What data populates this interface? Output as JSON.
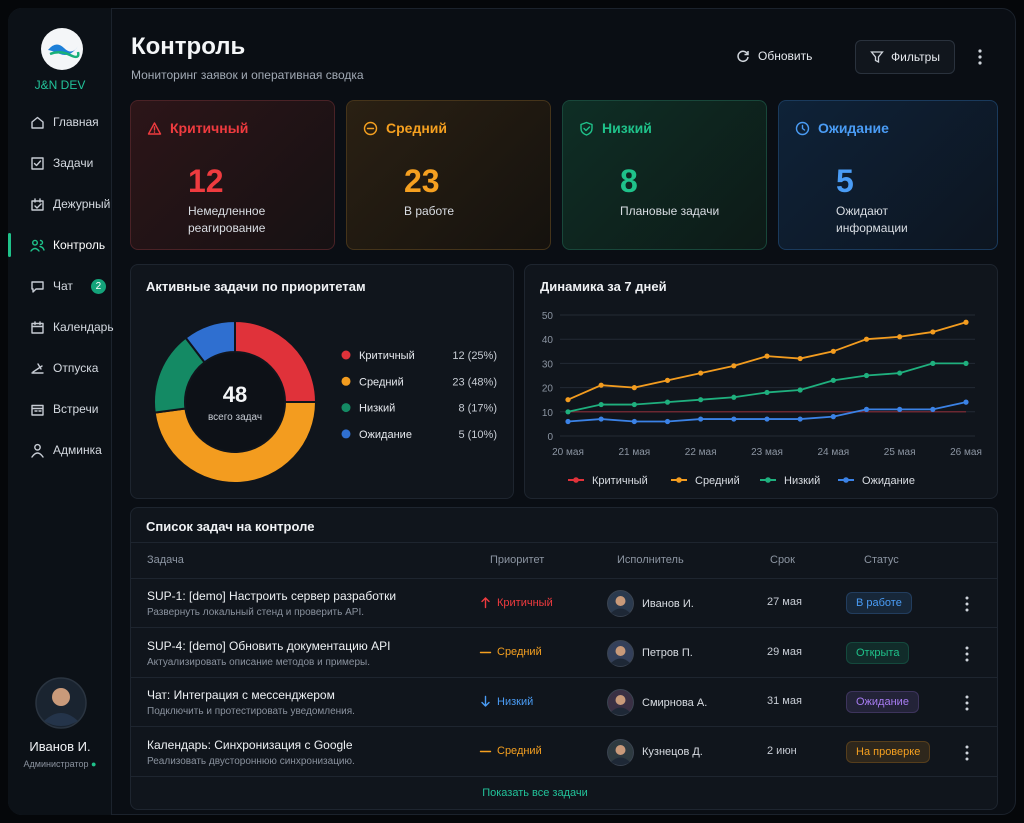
{
  "sidebar": {
    "logo_text": "J&N DEV",
    "nav": [
      {
        "label": "Главная"
      },
      {
        "label": "Задачи"
      },
      {
        "label": "Дежурный"
      },
      {
        "label": "Контроль",
        "active": true
      },
      {
        "label": "Чат",
        "badge": 2
      },
      {
        "label": "Календарь"
      },
      {
        "label": "Отпуска"
      },
      {
        "label": "Встречи"
      },
      {
        "label": "Админка"
      }
    ],
    "user": {
      "name": "Иванов И.",
      "role": "Администратор"
    }
  },
  "header": {
    "title": "Контроль",
    "subtitle": "Мониторинг заявок и оперативная сводка",
    "actions": [
      "Обновить",
      "Фильтры"
    ]
  },
  "cards": [
    {
      "title": "Критичный",
      "value": 12,
      "desc": "Немедленное реагирование",
      "color": "#ef3b3f"
    },
    {
      "title": "Средний",
      "value": 23,
      "desc": "В работе",
      "color": "#f5a020"
    },
    {
      "title": "Низкий",
      "value": 8,
      "desc": "Плановые задачи",
      "color": "#1fc28a"
    },
    {
      "title": "Ожидание",
      "value": 5,
      "desc": "Ожидают информации",
      "color": "#4a9cf5"
    }
  ],
  "chart_data": [
    {
      "type": "pie",
      "title": "Активные задачи по приоритетам",
      "center_value": 48,
      "center_label": "всего задач",
      "categories": [
        "Критичный",
        "Средний",
        "Низкий",
        "Ожидание"
      ],
      "values": [
        12,
        23,
        8,
        5
      ],
      "value_labels": [
        "12 (25%)",
        "23 (48%)",
        "8 (17%)",
        "5 (10%)"
      ],
      "colors": [
        "#e0323a",
        "#f39c1f",
        "#148a64",
        "#2f6fd0"
      ]
    },
    {
      "type": "line",
      "title": "Динамика за 7 дней",
      "categories": [
        "20 мая",
        null,
        "21 мая",
        null,
        "22 мая",
        null,
        "23 мая",
        null,
        "24 мая",
        null,
        "25 мая",
        null,
        "26 мая"
      ],
      "ylim": [
        0,
        50
      ],
      "yticks": [
        0,
        10,
        20,
        30,
        40,
        50
      ],
      "grid": true,
      "legend": "bottom",
      "series": [
        {
          "name": "Критичный",
          "color": "#e0323a",
          "values": [
            10,
            10,
            10,
            10,
            10,
            10,
            10,
            10,
            10,
            10,
            10,
            10,
            10
          ]
        },
        {
          "name": "Средний",
          "color": "#f39c1f",
          "values": [
            15,
            21,
            20,
            23,
            26,
            29,
            33,
            32,
            35,
            40,
            41,
            43,
            47
          ]
        },
        {
          "name": "Низкий",
          "color": "#1fb07e",
          "values": [
            10,
            13,
            13,
            14,
            15,
            16,
            18,
            19,
            23,
            25,
            26,
            30,
            30
          ]
        },
        {
          "name": "Ожидание",
          "color": "#3b82e6",
          "values": [
            6,
            7,
            6,
            6,
            7,
            7,
            7,
            7,
            8,
            11,
            11,
            11,
            14
          ]
        }
      ]
    }
  ],
  "table": {
    "title": "Список задач на контроле",
    "columns": [
      "Задача",
      "Приоритет",
      "Исполнитель",
      "Срок",
      "Статус"
    ],
    "rows": [
      {
        "task": "SUP-1: [demo] Настроить сервер разработки",
        "desc": "Развернуть локальный стенд и проверить API.",
        "priority": "Критичный",
        "priority_color": "#ef3b3f",
        "priority_icon": "up",
        "assignee": "Иванов И.",
        "due": "27 мая",
        "status": "В работе",
        "status_color": "#4a9cf5"
      },
      {
        "task": "SUP-4: [demo] Обновить документацию API",
        "desc": "Актуализировать описание методов и примеры.",
        "priority": "Средний",
        "priority_color": "#f5a020",
        "priority_icon": "dash",
        "assignee": "Петров П.",
        "due": "29 мая",
        "status": "Открыта",
        "status_color": "#1fc28a"
      },
      {
        "task": "Чат: Интеграция с мессенджером",
        "desc": "Подключить и протестировать уведомления.",
        "priority": "Низкий",
        "priority_color": "#4a9cf5",
        "priority_icon": "down",
        "assignee": "Смирнова А.",
        "due": "31 мая",
        "status": "Ожидание",
        "status_color": "#a77cf2"
      },
      {
        "task": "Календарь: Синхронизация с Google",
        "desc": "Реализовать двустороннюю синхронизацию.",
        "priority": "Средний",
        "priority_color": "#f5a020",
        "priority_icon": "dash",
        "assignee": "Кузнецов Д.",
        "due": "2 июн",
        "status": "На проверке",
        "status_color": "#f5a020"
      }
    ],
    "footer_link": "Показать все задачи"
  }
}
